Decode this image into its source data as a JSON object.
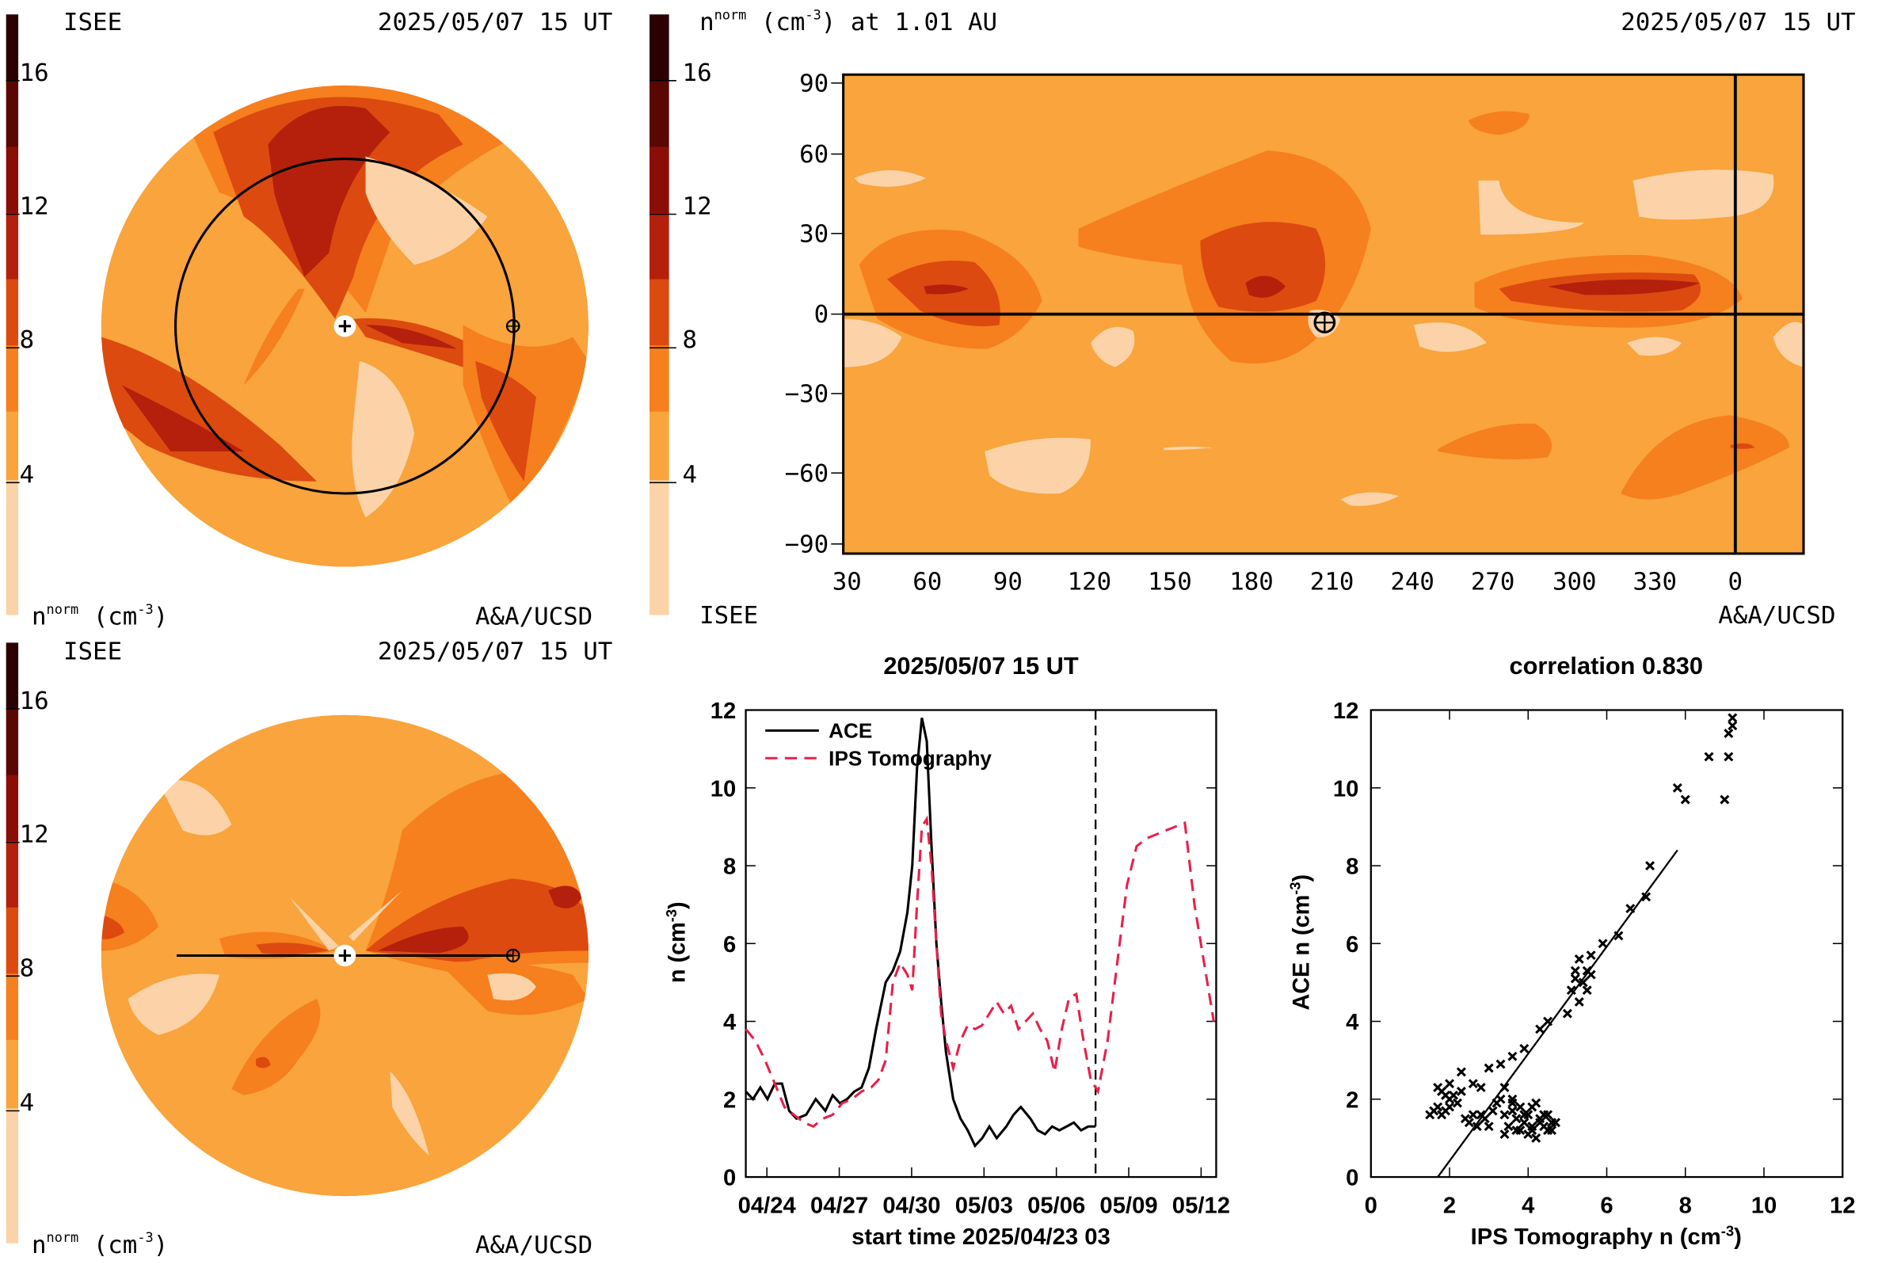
{
  "colors": {
    "scale": [
      "#fcd3a8",
      "#f9a43c",
      "#f67f1e",
      "#dc4a10",
      "#b4200c",
      "#8b0e06",
      "#5a0602",
      "#2a0100"
    ],
    "base": "#f9a43c",
    "ace_line": "#000000",
    "ips_line": "#e8204a"
  },
  "panels": {
    "top_left": {
      "label_left": "ISEE",
      "timestamp": "2025/05/07 15 UT",
      "colorbar_ticks": [
        "16",
        "12",
        "8",
        "4"
      ],
      "unit": "nnorm (cm-3)",
      "credit": "A&A/UCSD"
    },
    "top_right": {
      "title": "nnorm (cm-3) at 1.01 AU",
      "timestamp": "2025/05/07 15 UT",
      "colorbar_ticks": [
        "16",
        "12",
        "8",
        "4"
      ],
      "credit_left": "ISEE",
      "credit": "A&A/UCSD",
      "y_ticks": [
        "90",
        "60",
        "30",
        "0",
        "−30",
        "−60",
        "−90"
      ],
      "x_ticks": [
        "30",
        "60",
        "90",
        "120",
        "150",
        "180",
        "210",
        "240",
        "270",
        "300",
        "330",
        "0"
      ]
    },
    "bottom_left": {
      "label_left": "ISEE",
      "timestamp": "2025/05/07 15 UT",
      "colorbar_ticks": [
        "16",
        "12",
        "8",
        "4"
      ],
      "unit": "nnorm (cm-3)",
      "credit": "A&A/UCSD"
    }
  },
  "chart_data": [
    {
      "type": "line",
      "title": "2025/05/07 15 UT",
      "xlabel": "start time 2025/04/23 03",
      "ylabel": "n (cm-3)",
      "x_tick_labels": [
        "04/24",
        "04/27",
        "04/30",
        "05/03",
        "05/06",
        "05/09",
        "05/12"
      ],
      "x_tick_days": [
        0.875,
        3.875,
        6.875,
        9.875,
        12.875,
        15.875,
        18.875
      ],
      "xlim": [
        0,
        19.5
      ],
      "ylim": [
        0,
        12
      ],
      "y_ticks": [
        0,
        2,
        4,
        6,
        8,
        10,
        12
      ],
      "now_marker_day": 14.5,
      "legend": "top-left",
      "series": [
        {
          "name": "ACE",
          "style": "solid",
          "x": [
            0.0,
            0.3,
            0.6,
            0.9,
            1.2,
            1.5,
            1.8,
            2.1,
            2.5,
            2.9,
            3.3,
            3.6,
            3.9,
            4.2,
            4.5,
            4.8,
            5.1,
            5.4,
            5.8,
            6.1,
            6.4,
            6.7,
            6.9,
            7.1,
            7.3,
            7.5,
            7.7,
            7.9,
            8.1,
            8.3,
            8.6,
            8.9,
            9.2,
            9.5,
            9.8,
            10.1,
            10.4,
            10.8,
            11.1,
            11.4,
            11.8,
            12.1,
            12.4,
            12.7,
            13.0,
            13.3,
            13.6,
            13.9,
            14.2,
            14.5
          ],
          "values": [
            2.2,
            2.0,
            2.3,
            2.0,
            2.4,
            2.4,
            1.7,
            1.5,
            1.6,
            2.0,
            1.7,
            2.1,
            1.9,
            2.0,
            2.2,
            2.3,
            2.8,
            3.8,
            5.0,
            5.3,
            5.8,
            6.8,
            8.0,
            10.5,
            11.8,
            11.2,
            8.5,
            6.0,
            4.5,
            3.2,
            2.0,
            1.5,
            1.2,
            0.8,
            1.0,
            1.3,
            1.0,
            1.3,
            1.6,
            1.8,
            1.5,
            1.2,
            1.1,
            1.3,
            1.2,
            1.3,
            1.4,
            1.2,
            1.3,
            1.3
          ]
        },
        {
          "name": "IPS Tomography",
          "style": "dashed",
          "x": [
            0.0,
            0.4,
            0.8,
            1.2,
            1.6,
            2.0,
            2.4,
            2.8,
            3.2,
            3.6,
            4.0,
            4.4,
            4.8,
            5.2,
            5.5,
            5.8,
            6.1,
            6.4,
            6.7,
            6.9,
            7.1,
            7.3,
            7.5,
            7.7,
            7.9,
            8.1,
            8.3,
            8.6,
            8.9,
            9.2,
            9.5,
            9.8,
            10.1,
            10.4,
            10.7,
            11.0,
            11.3,
            11.6,
            11.9,
            12.2,
            12.5,
            12.8,
            13.1,
            13.4,
            13.7,
            14.0,
            14.3,
            14.6,
            15.0,
            15.4,
            15.8,
            16.2,
            16.6,
            17.0,
            17.4,
            17.8,
            18.2,
            18.6,
            19.0,
            19.4
          ],
          "values": [
            3.8,
            3.5,
            3.0,
            2.4,
            1.8,
            1.6,
            1.4,
            1.3,
            1.5,
            1.6,
            1.9,
            2.0,
            2.2,
            2.3,
            2.5,
            3.0,
            5.0,
            5.5,
            5.2,
            4.8,
            7.0,
            9.0,
            9.2,
            8.0,
            6.0,
            4.2,
            3.5,
            2.8,
            3.5,
            3.9,
            3.8,
            3.9,
            4.2,
            4.5,
            4.2,
            4.4,
            3.8,
            4.0,
            4.2,
            3.8,
            3.5,
            2.7,
            3.8,
            4.6,
            4.7,
            3.5,
            2.5,
            2.2,
            3.5,
            5.5,
            7.5,
            8.5,
            8.7,
            8.8,
            8.9,
            9.0,
            9.1,
            7.0,
            5.5,
            4.0
          ]
        }
      ]
    },
    {
      "type": "scatter",
      "title": "correlation 0.830",
      "xlabel": "IPS Tomography n (cm-3)",
      "ylabel": "ACE n (cm-3)",
      "xlim": [
        0,
        12
      ],
      "ylim": [
        0,
        12
      ],
      "x_ticks": [
        0,
        2,
        4,
        6,
        8,
        10,
        12
      ],
      "y_ticks": [
        0,
        2,
        4,
        6,
        8,
        10,
        12
      ],
      "fit_line": {
        "from": [
          1.7,
          0.0
        ],
        "to": [
          7.8,
          8.4
        ]
      },
      "points": [
        [
          1.5,
          1.6
        ],
        [
          1.6,
          1.7
        ],
        [
          1.7,
          1.8
        ],
        [
          1.8,
          1.6
        ],
        [
          1.9,
          1.7
        ],
        [
          2.0,
          1.8
        ],
        [
          1.7,
          2.3
        ],
        [
          1.8,
          2.2
        ],
        [
          1.9,
          2.1
        ],
        [
          2.0,
          2.0
        ],
        [
          2.1,
          2.1
        ],
        [
          2.2,
          1.9
        ],
        [
          2.3,
          2.2
        ],
        [
          2.4,
          1.5
        ],
        [
          2.5,
          1.4
        ],
        [
          2.6,
          1.6
        ],
        [
          2.7,
          1.3
        ],
        [
          2.8,
          1.6
        ],
        [
          2.9,
          1.5
        ],
        [
          3.0,
          1.3
        ],
        [
          3.1,
          1.7
        ],
        [
          3.2,
          1.9
        ],
        [
          3.3,
          2.0
        ],
        [
          3.4,
          1.6
        ],
        [
          3.5,
          1.3
        ],
        [
          3.6,
          1.7
        ],
        [
          3.7,
          1.5
        ],
        [
          3.8,
          1.2
        ],
        [
          3.9,
          1.4
        ],
        [
          4.0,
          1.1
        ],
        [
          4.1,
          1.3
        ],
        [
          4.2,
          1.0
        ],
        [
          4.3,
          1.5
        ],
        [
          4.4,
          1.3
        ],
        [
          4.5,
          1.2
        ],
        [
          4.6,
          1.4
        ],
        [
          4.7,
          1.4
        ],
        [
          3.8,
          1.8
        ],
        [
          3.6,
          2.0
        ],
        [
          3.4,
          2.3
        ],
        [
          2.6,
          2.4
        ],
        [
          2.3,
          2.7
        ],
        [
          3.0,
          2.8
        ],
        [
          3.3,
          2.9
        ],
        [
          3.6,
          3.1
        ],
        [
          3.9,
          3.3
        ],
        [
          3.6,
          1.9
        ],
        [
          4.1,
          1.2
        ],
        [
          4.4,
          1.6
        ],
        [
          3.4,
          1.1
        ],
        [
          2.0,
          2.4
        ],
        [
          2.8,
          2.3
        ],
        [
          4.2,
          1.9
        ],
        [
          3.9,
          1.6
        ],
        [
          4.3,
          1.4
        ],
        [
          4.5,
          1.6
        ],
        [
          4.0,
          1.6
        ],
        [
          3.7,
          1.2
        ],
        [
          4.6,
          1.2
        ],
        [
          4.1,
          1.8
        ],
        [
          4.3,
          3.8
        ],
        [
          4.5,
          4.0
        ],
        [
          5.0,
          4.2
        ],
        [
          5.1,
          4.8
        ],
        [
          5.2,
          5.1
        ],
        [
          5.3,
          4.5
        ],
        [
          5.4,
          5.0
        ],
        [
          5.5,
          4.8
        ],
        [
          5.2,
          5.3
        ],
        [
          5.3,
          5.6
        ],
        [
          5.5,
          5.3
        ],
        [
          5.6,
          5.2
        ],
        [
          5.6,
          5.7
        ],
        [
          5.9,
          6.0
        ],
        [
          6.3,
          6.2
        ],
        [
          6.6,
          6.9
        ],
        [
          7.0,
          7.2
        ],
        [
          7.1,
          8.0
        ],
        [
          7.8,
          10.0
        ],
        [
          8.0,
          9.7
        ],
        [
          8.6,
          10.8
        ],
        [
          9.0,
          9.7
        ],
        [
          9.1,
          10.8
        ],
        [
          9.1,
          11.4
        ],
        [
          9.2,
          11.6
        ],
        [
          9.2,
          11.8
        ]
      ]
    }
  ]
}
